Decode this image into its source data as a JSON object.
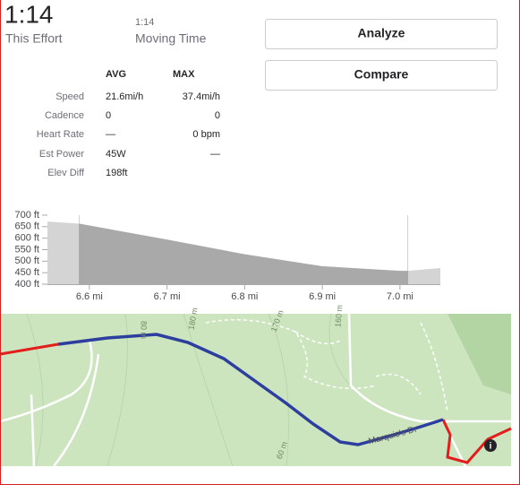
{
  "effort": {
    "time": "1:14",
    "label": "This Effort"
  },
  "moving": {
    "time": "1:14",
    "label": "Moving Time"
  },
  "buttons": [
    "Analyze",
    "Compare"
  ],
  "stats": {
    "headers": [
      "AVG",
      "MAX"
    ],
    "rows": [
      [
        "Speed",
        "21.6mi/h",
        "37.4mi/h"
      ],
      [
        "Cadence",
        "0",
        "0"
      ],
      [
        "Heart Rate",
        "—",
        "0 bpm"
      ],
      [
        "Est Power",
        "45W",
        "—"
      ],
      [
        "Elev Diff",
        "198ft"
      ]
    ]
  },
  "chart_data": {
    "type": "area",
    "x": [
      6.546,
      6.587,
      6.7,
      6.8,
      6.9,
      7.0,
      7.01,
      7.052
    ],
    "values": [
      672,
      663,
      594,
      530,
      478,
      458,
      458,
      470
    ],
    "highlight": [
      6.587,
      7.01
    ],
    "color": "#a9a9a9",
    "xlim": [
      6.546,
      7.052
    ],
    "ylim": [
      400,
      700
    ],
    "xticks": [
      {
        "value": 6.6,
        "label": "6.6 mi"
      },
      {
        "value": 6.7,
        "label": "6.7 mi"
      },
      {
        "value": 6.8,
        "label": "6.8 mi"
      },
      {
        "value": 6.9,
        "label": "6.9 mi"
      },
      {
        "value": 7.0,
        "label": "7.0 mi"
      }
    ],
    "yticks": [
      {
        "value": 400,
        "label": "400 ft"
      },
      {
        "value": 450,
        "label": "450 ft"
      },
      {
        "value": 500,
        "label": "500 ft"
      },
      {
        "value": 550,
        "label": "550 ft"
      },
      {
        "value": 600,
        "label": "600 ft"
      },
      {
        "value": 650,
        "label": "650 ft"
      },
      {
        "value": 700,
        "label": "700 ft"
      }
    ]
  },
  "map": {
    "labels": [
      "180 m",
      "170 m",
      "160 m",
      "80 m",
      "60 m",
      "Marquis's Dr"
    ]
  }
}
